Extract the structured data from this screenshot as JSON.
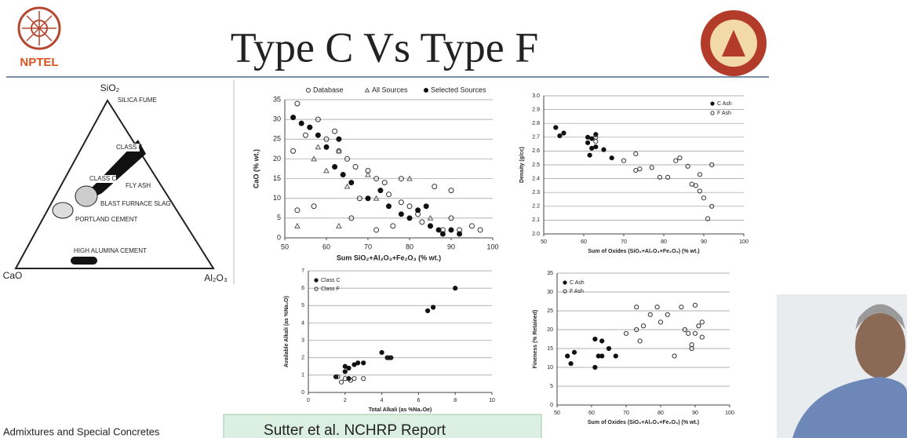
{
  "slide": {
    "title": "Type C Vs Type F",
    "logo": "NPTEL",
    "course": "Admixtures and Special Concretes",
    "source": "Sutter et al. NCHRP Report"
  },
  "diagram": {
    "apex": "SiO₂",
    "left": "CaO",
    "right": "Al₂O₃",
    "regions": [
      "SILICA FUME",
      "CLASS F",
      "CLASS C",
      "FLY ASH",
      "BLAST FURNACE SLAG",
      "PORTLAND CEMENT",
      "HIGH ALUMINA CEMENT"
    ]
  },
  "chart_data": [
    {
      "type": "scatter",
      "xlabel": "Sum SiO₂+Al₂O₃+Fe₂O₃ (% wt.)",
      "ylabel": "CaO (% wt.)",
      "legend": "top",
      "grid": "y",
      "xlim": [
        50,
        100
      ],
      "xticks": [
        50,
        60,
        70,
        80,
        90,
        100
      ],
      "ylim": [
        0,
        35
      ],
      "yticks": [
        0,
        5,
        10,
        15,
        20,
        25,
        30,
        35
      ],
      "series": [
        {
          "name": "Database",
          "marker": "circle-open",
          "color": "#333333",
          "x": [
            52,
            53,
            53,
            55,
            56,
            57,
            58,
            60,
            62,
            63,
            65,
            66,
            67,
            68,
            70,
            72,
            72,
            74,
            75,
            76,
            78,
            78,
            80,
            82,
            83,
            85,
            86,
            88,
            90,
            92,
            95,
            97,
            90
          ],
          "values": [
            22,
            34,
            7,
            26,
            28,
            8,
            30,
            25,
            27,
            22,
            20,
            5,
            18,
            10,
            17,
            15,
            2,
            14,
            11,
            3,
            9,
            15,
            8,
            6,
            4,
            3,
            13,
            2,
            5,
            2,
            3,
            2,
            12
          ]
        },
        {
          "name": "All Sources",
          "marker": "triangle-open",
          "color": "#555555",
          "x": [
            53,
            57,
            58,
            60,
            63,
            63,
            65,
            70,
            72,
            80,
            85
          ],
          "values": [
            3,
            20,
            23,
            17,
            3,
            22,
            13,
            16,
            10,
            15,
            5
          ]
        },
        {
          "name": "Selected Sources",
          "marker": "circle",
          "color": "#111111",
          "x": [
            52,
            54,
            56,
            58,
            60,
            62,
            63,
            64,
            66,
            70,
            73,
            75,
            78,
            80,
            82,
            84,
            85,
            87,
            88,
            90,
            92
          ],
          "values": [
            30.5,
            29,
            28,
            26,
            23,
            18,
            25,
            16,
            14,
            10,
            12,
            8,
            6,
            5,
            7,
            8,
            3,
            2,
            1,
            2,
            1
          ]
        }
      ]
    },
    {
      "type": "scatter",
      "xlabel": "Sum of Oxides (SiO₂+Al₂O₃+Fe₂O₃) (% wt.)",
      "ylabel": "Density (g/cc)",
      "legend": "upper-right",
      "grid": "y",
      "xlim": [
        50,
        100
      ],
      "xticks": [
        50,
        60,
        70,
        80,
        90,
        100
      ],
      "ylim": [
        2,
        3
      ],
      "yticks": [
        {
          "value": 2,
          "label": "2.0"
        },
        2.1,
        2.2,
        2.3,
        2.4,
        2.5,
        2.6,
        2.7,
        2.8,
        2.9,
        {
          "value": 3,
          "label": "3.0"
        }
      ],
      "series": [
        {
          "name": "C Ash",
          "marker": "circle",
          "color": "#111111",
          "x": [
            53,
            54,
            55,
            61,
            61,
            62,
            61.5,
            62,
            63,
            63,
            65,
            67
          ],
          "values": [
            2.77,
            2.71,
            2.73,
            2.7,
            2.66,
            2.62,
            2.57,
            2.69,
            2.63,
            2.72,
            2.61,
            2.55
          ]
        },
        {
          "name": "F Ash",
          "marker": "circle-open",
          "color": "#333333",
          "x": [
            63,
            63,
            70,
            73,
            73,
            74,
            77,
            79,
            81,
            83,
            84,
            86,
            87,
            88,
            89,
            89,
            90,
            91,
            92,
            92
          ],
          "values": [
            2.67,
            2.7,
            2.53,
            2.58,
            2.46,
            2.47,
            2.48,
            2.41,
            2.41,
            2.53,
            2.55,
            2.49,
            2.36,
            2.35,
            2.43,
            2.31,
            2.26,
            2.11,
            2.5,
            2.2
          ]
        }
      ]
    },
    {
      "type": "scatter",
      "xlabel": "Total Alkali (as %Na₂Oe)",
      "ylabel": "Available Alkali (as %Na₂O)",
      "legend": "upper-left",
      "grid": "y",
      "xlim": [
        0,
        10
      ],
      "xticks": [
        0,
        2,
        4,
        6,
        8,
        10
      ],
      "ylim": [
        0,
        7
      ],
      "yticks": [
        0,
        1,
        2,
        3,
        4,
        5,
        6,
        7
      ],
      "series": [
        {
          "name": "Class C",
          "marker": "circle",
          "color": "#111111",
          "x": [
            8,
            6.5,
            6.8,
            4,
            4.5,
            4.3,
            2,
            2.2,
            2.5,
            2.7,
            2,
            1.5,
            2.2,
            3
          ],
          "values": [
            6,
            4.7,
            4.9,
            2.3,
            2,
            2,
            1.5,
            1.4,
            1.6,
            1.7,
            1.2,
            0.9,
            0.8,
            1.7
          ]
        },
        {
          "name": "Class F",
          "marker": "circle-open",
          "color": "#333333",
          "x": [
            2,
            2.5,
            3,
            1.8,
            2.3,
            4.4,
            1.6
          ],
          "values": [
            0.8,
            0.8,
            0.8,
            0.6,
            0.7,
            2,
            0.9
          ]
        }
      ]
    },
    {
      "type": "scatter",
      "xlabel": "Sum of Oxides (SiO₂+Al₂O₃+Fe₂O₃) (% wt.)",
      "ylabel": "Fineness (% Retained)",
      "legend": "upper-left",
      "grid": "y",
      "xlim": [
        50,
        100
      ],
      "xticks": [
        50,
        60,
        70,
        80,
        90,
        100
      ],
      "ylim": [
        0,
        35
      ],
      "yticks": [
        0,
        5,
        10,
        15,
        20,
        25,
        30,
        35
      ],
      "series": [
        {
          "name": "C Ash",
          "marker": "circle",
          "color": "#111111",
          "x": [
            53,
            54,
            55,
            61,
            61,
            62,
            63,
            63,
            65,
            67
          ],
          "values": [
            13,
            11,
            14,
            17.5,
            10,
            13,
            17,
            13,
            15,
            13
          ]
        },
        {
          "name": "F Ash",
          "marker": "circle-open",
          "color": "#333333",
          "x": [
            70,
            73,
            73,
            74,
            75,
            77,
            79,
            80,
            82,
            84,
            86,
            87,
            89,
            89,
            90,
            90,
            91,
            92,
            92,
            88
          ],
          "values": [
            19,
            26,
            20,
            17,
            21,
            24,
            26,
            22,
            24,
            13,
            26,
            20,
            15,
            16,
            19,
            26.5,
            21,
            18,
            22,
            19
          ]
        }
      ]
    }
  ]
}
